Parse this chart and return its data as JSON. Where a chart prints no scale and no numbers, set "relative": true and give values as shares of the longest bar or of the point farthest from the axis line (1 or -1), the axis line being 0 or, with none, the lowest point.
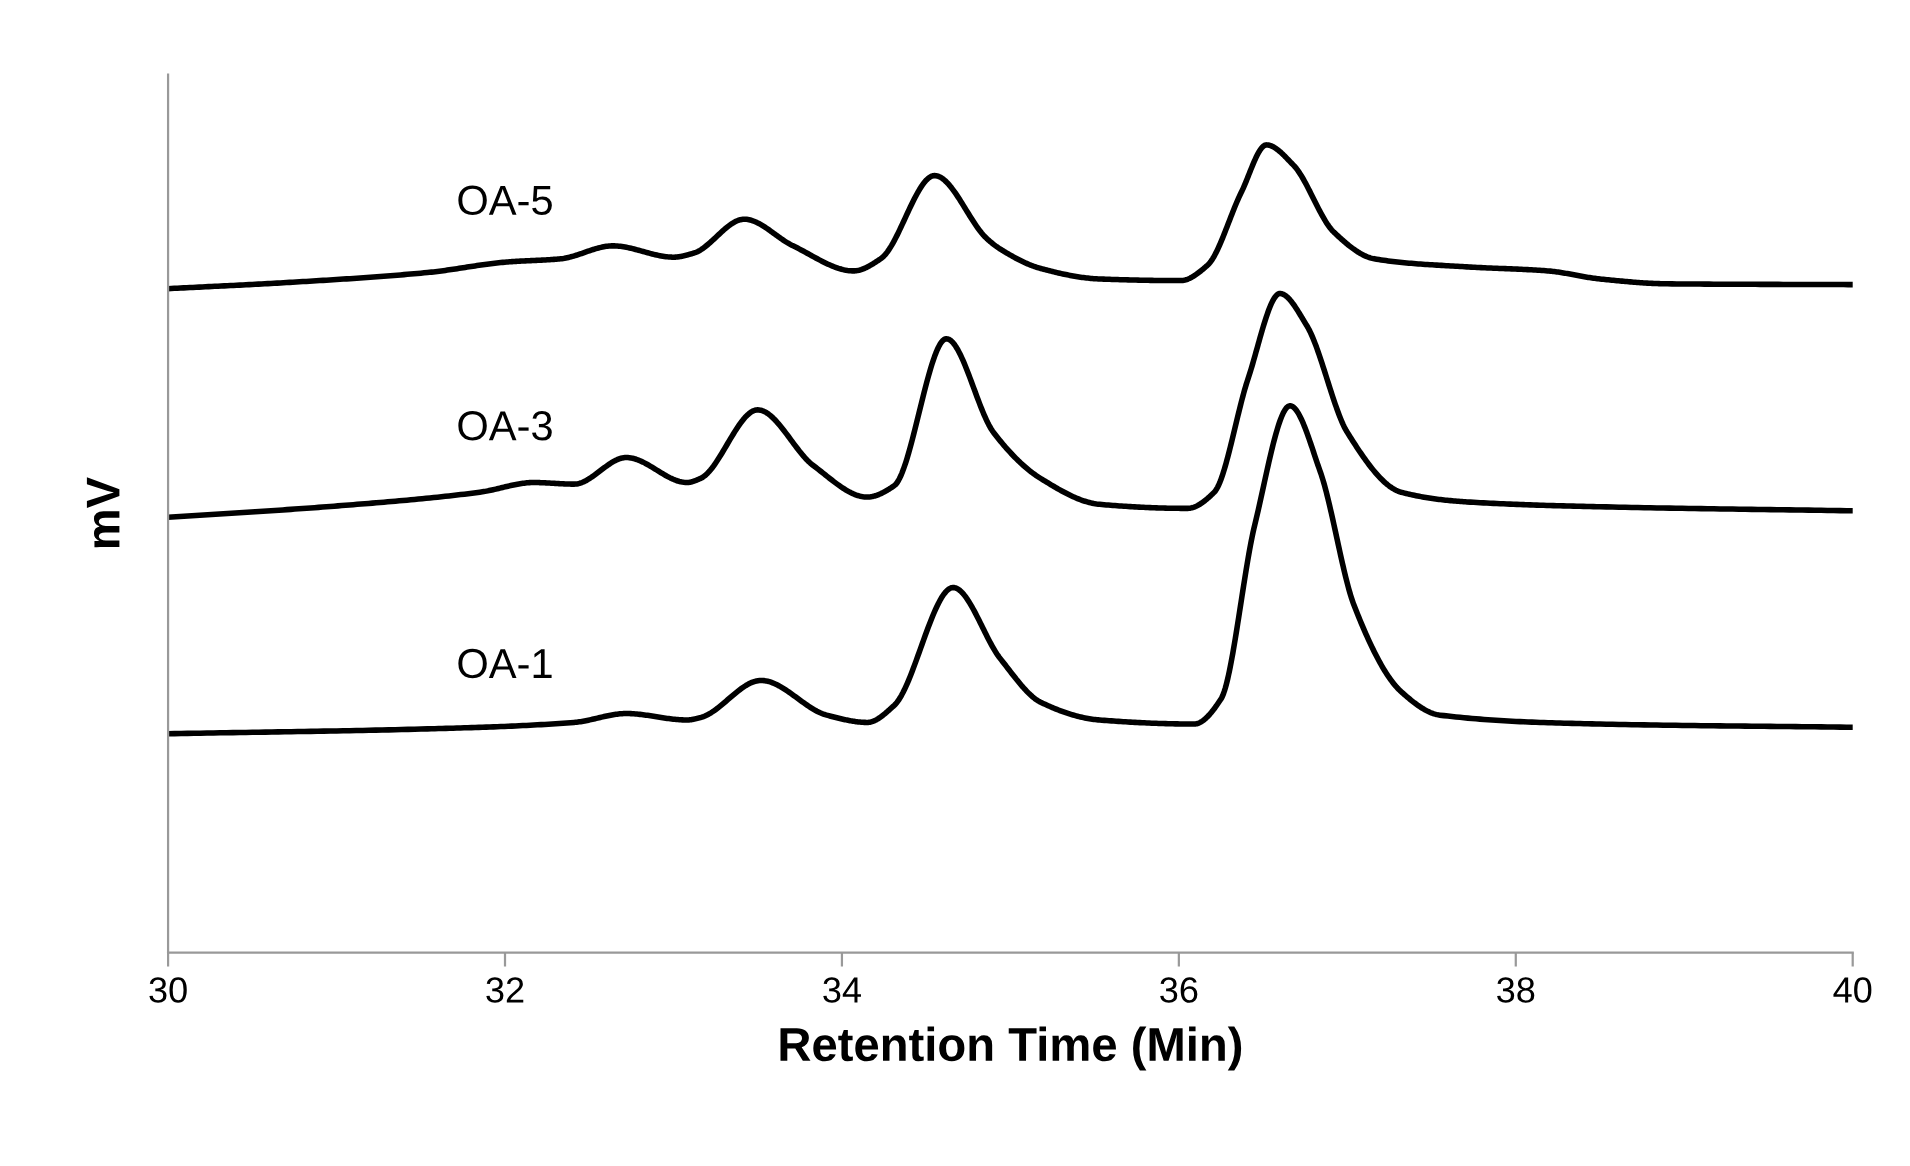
{
  "chart_data": {
    "type": "line",
    "xlabel": "Retention Time (Min)",
    "ylabel": "mV",
    "relative": true,
    "xlim": [
      30,
      40
    ],
    "xticks": [
      30,
      32,
      34,
      36,
      38,
      40
    ],
    "grid": false,
    "legend": false,
    "marker": "none",
    "line_style": "solid",
    "tick_labels": "x",
    "series": [
      {
        "name": "OA-5",
        "color": "#000000",
        "x": [
          30.0,
          30.74,
          31.54,
          32.01,
          32.33,
          32.64,
          33.0,
          33.12,
          33.42,
          33.71,
          34.07,
          34.23,
          34.55,
          34.86,
          34.94,
          35.18,
          35.53,
          36.01,
          36.17,
          36.37,
          36.52,
          36.68,
          36.92,
          37.16,
          37.71,
          38.19,
          38.5,
          38.9,
          40.0
        ],
        "values": [
          0.822,
          0.83,
          0.842,
          0.855,
          0.859,
          0.875,
          0.861,
          0.866,
          0.908,
          0.875,
          0.844,
          0.859,
          0.962,
          0.884,
          0.871,
          0.847,
          0.834,
          0.832,
          0.851,
          0.941,
          1.0,
          0.975,
          0.892,
          0.859,
          0.849,
          0.844,
          0.834,
          0.828,
          0.827
        ]
      },
      {
        "name": "OA-3",
        "color": "#000000",
        "x": [
          30.0,
          30.94,
          31.85,
          32.17,
          32.41,
          32.72,
          33.08,
          33.16,
          33.5,
          33.83,
          34.15,
          34.31,
          34.62,
          34.9,
          35.18,
          35.53,
          36.05,
          36.21,
          36.41,
          36.6,
          36.76,
          37.0,
          37.32,
          37.71,
          38.5,
          40.0
        ],
        "values": [
          0.539,
          0.552,
          0.57,
          0.582,
          0.58,
          0.613,
          0.582,
          0.587,
          0.672,
          0.603,
          0.564,
          0.578,
          0.76,
          0.644,
          0.587,
          0.555,
          0.55,
          0.57,
          0.71,
          0.816,
          0.776,
          0.644,
          0.57,
          0.558,
          0.552,
          0.547
        ]
      },
      {
        "name": "OA-1",
        "color": "#000000",
        "x": [
          30.0,
          31.54,
          32.41,
          32.72,
          33.08,
          33.16,
          33.52,
          33.91,
          34.15,
          34.31,
          34.66,
          34.94,
          35.18,
          35.53,
          36.09,
          36.25,
          36.45,
          36.66,
          36.84,
          37.04,
          37.32,
          37.55,
          38.5,
          40.0
        ],
        "values": [
          0.271,
          0.277,
          0.285,
          0.296,
          0.288,
          0.291,
          0.337,
          0.294,
          0.285,
          0.306,
          0.452,
          0.364,
          0.31,
          0.288,
          0.283,
          0.314,
          0.529,
          0.677,
          0.595,
          0.43,
          0.323,
          0.294,
          0.283,
          0.279
        ]
      }
    ]
  }
}
